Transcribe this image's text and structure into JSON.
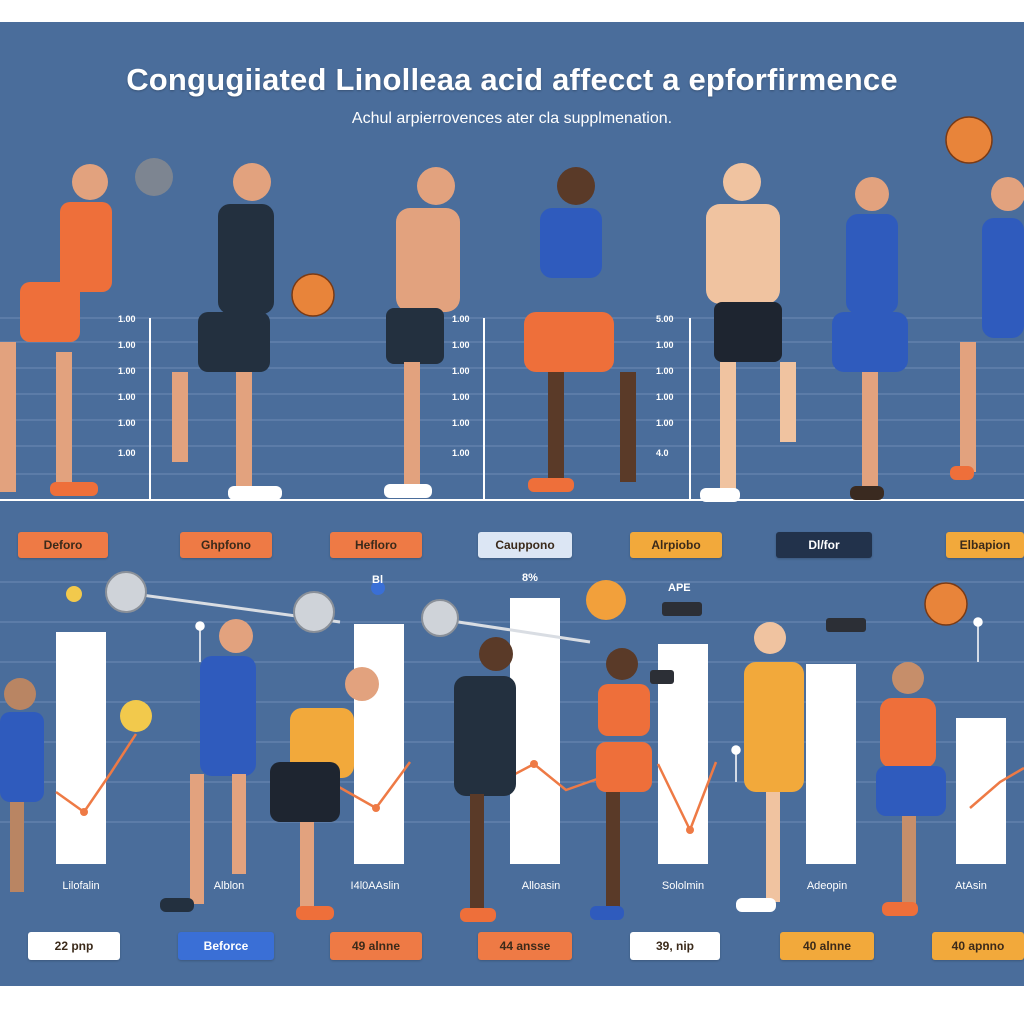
{
  "header": {
    "title": "Congugiiated Linolleaa acid affecct a epforfirmence",
    "subtitle": "Achul arpierrovences ater cla supplmenation."
  },
  "top_axis_labels": {
    "left_group": [
      "1.00",
      "1.00",
      "1.00",
      "1.00",
      "1.00",
      "1.00"
    ],
    "mid_group": [
      "1.00",
      "1.00",
      "1.00",
      "1.00",
      "1.00",
      "1.00"
    ],
    "right_group": [
      "5.00",
      "1.00",
      "1.00",
      "1.00",
      "1.00",
      "4.0"
    ]
  },
  "phase_tags": [
    "Deforo",
    "Ghpfono",
    "Hefloro",
    "Cauppono",
    "Alrpiobo",
    "Dl/for",
    "Elbapion"
  ],
  "bar_annotations": [
    "Bl",
    "8%",
    "APE"
  ],
  "column_names": [
    "Lilofalin",
    "Alblon",
    "I4l0AAslin",
    "Alloasin",
    "Sololmin",
    "Adeopin",
    "AtAsin"
  ],
  "bottom_tags": [
    "22 pnp",
    "Beforce",
    "49 alnne",
    "44 ansse",
    "39, nip",
    "40 alnne",
    "40 apnno"
  ],
  "colors": {
    "background": "#4a6d9b",
    "orange": "#ee7a45",
    "amber": "#f2a93b",
    "blue": "#3a6fd6",
    "navy": "#22324b",
    "white": "#ffffff"
  },
  "icons": [
    "basketball-icon",
    "volleyball-icon",
    "barbell-icon",
    "dumbbell-icon",
    "heart-icon",
    "pin-icon"
  ]
}
